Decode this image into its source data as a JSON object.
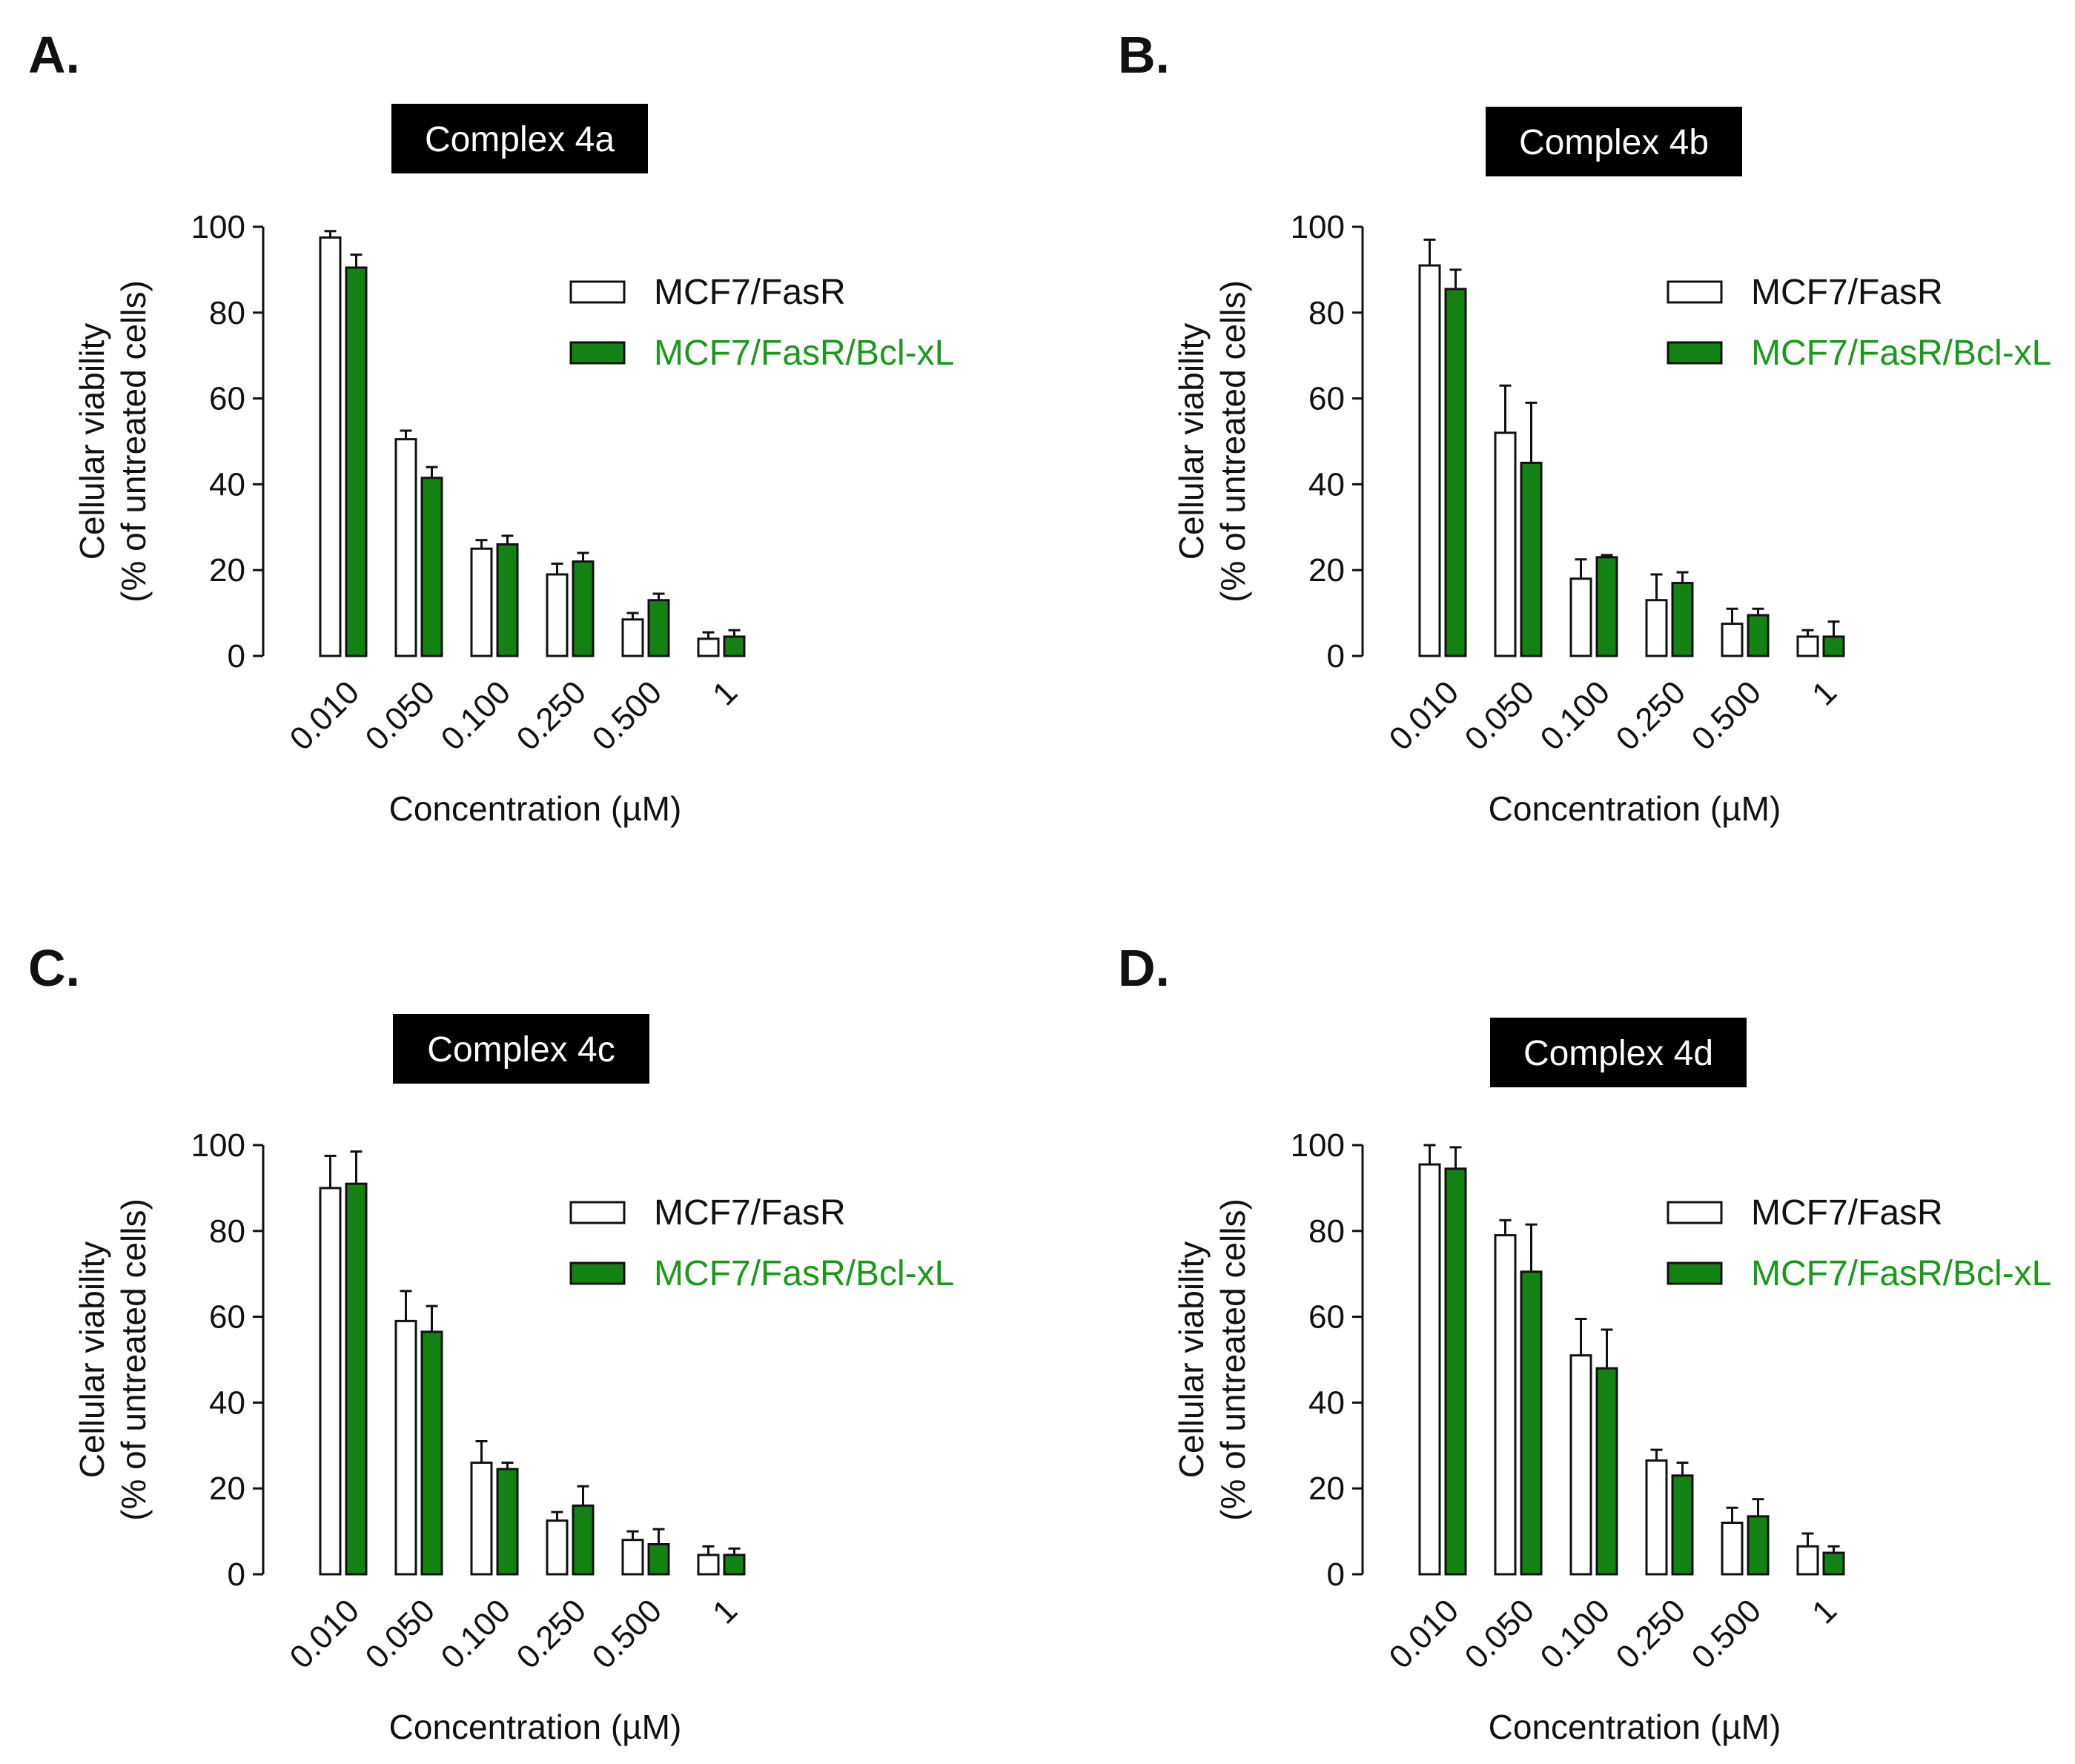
{
  "colors": {
    "series_white_fill": "#ffffff",
    "series_green_fill": "#128312",
    "series_green_text": "#1a9a1a",
    "outline": "#111111",
    "title_bg": "#000000",
    "title_text": "#ffffff"
  },
  "chart_data": [
    {
      "type": "bar",
      "panel": "A.",
      "title": "Complex 4a",
      "xlabel": "Concentration (µM)",
      "ylabel": [
        "Cellular viability",
        "(% of untreated cells)"
      ],
      "ylim": [
        0,
        100
      ],
      "yticks": [
        0,
        20,
        40,
        60,
        80,
        100
      ],
      "categories": [
        "0.010",
        "0.050",
        "0.100",
        "0.250",
        "0.500",
        "1"
      ],
      "series": [
        {
          "name": "MCF7/FasR",
          "values": [
            97.5,
            50.5,
            25,
            19,
            8.5,
            4
          ],
          "errors": [
            1.5,
            2,
            2,
            2.5,
            1.5,
            1.5
          ]
        },
        {
          "name": "MCF7/FasR/Bcl-xL",
          "values": [
            90.5,
            41.5,
            26,
            22,
            13,
            4.5
          ],
          "errors": [
            3,
            2.5,
            2,
            2,
            1.5,
            1.5
          ]
        }
      ]
    },
    {
      "type": "bar",
      "panel": "B.",
      "title": "Complex 4b",
      "xlabel": "Concentration (µM)",
      "ylabel": [
        "Cellular viability",
        "(% of untreated cells)"
      ],
      "ylim": [
        0,
        100
      ],
      "yticks": [
        0,
        20,
        40,
        60,
        80,
        100
      ],
      "categories": [
        "0.010",
        "0.050",
        "0.100",
        "0.250",
        "0.500",
        "1"
      ],
      "series": [
        {
          "name": "MCF7/FasR",
          "values": [
            91,
            52,
            18,
            13,
            7.5,
            4.5
          ],
          "errors": [
            6,
            11,
            4.5,
            6,
            3.5,
            1.5
          ]
        },
        {
          "name": "MCF7/FasR/Bcl-xL",
          "values": [
            85.5,
            45,
            23,
            17,
            9.5,
            4.5
          ],
          "errors": [
            4.5,
            14,
            0.5,
            2.5,
            1.5,
            3.5
          ]
        }
      ]
    },
    {
      "type": "bar",
      "panel": "C.",
      "title": "Complex 4c",
      "xlabel": "Concentration (µM)",
      "ylabel": [
        "Cellular viability",
        "(% of untreated cells)"
      ],
      "ylim": [
        0,
        100
      ],
      "yticks": [
        0,
        20,
        40,
        60,
        80,
        100
      ],
      "categories": [
        "0.010",
        "0.050",
        "0.100",
        "0.250",
        "0.500",
        "1"
      ],
      "series": [
        {
          "name": "MCF7/FasR",
          "values": [
            90,
            59,
            26,
            12.5,
            8,
            4.5
          ],
          "errors": [
            7.5,
            7,
            5,
            2,
            2,
            2
          ]
        },
        {
          "name": "MCF7/FasR/Bcl-xL",
          "values": [
            91,
            56.5,
            24.5,
            16,
            7,
            4.5
          ],
          "errors": [
            7.5,
            6,
            1.5,
            4.5,
            3.5,
            1.5
          ]
        }
      ]
    },
    {
      "type": "bar",
      "panel": "D.",
      "title": "Complex 4d",
      "xlabel": "Concentration (µM)",
      "ylabel": [
        "Cellular viability",
        "(% of untreated cells)"
      ],
      "ylim": [
        0,
        100
      ],
      "yticks": [
        0,
        20,
        40,
        60,
        80,
        100
      ],
      "categories": [
        "0.010",
        "0.050",
        "0.100",
        "0.250",
        "0.500",
        "1"
      ],
      "series": [
        {
          "name": "MCF7/FasR",
          "values": [
            95.5,
            79,
            51,
            26.5,
            12,
            6.5
          ],
          "errors": [
            4.5,
            3.5,
            8.5,
            2.5,
            3.5,
            3
          ]
        },
        {
          "name": "MCF7/FasR/Bcl-xL",
          "values": [
            94.5,
            70.5,
            48,
            23,
            13.5,
            5
          ],
          "errors": [
            5,
            11,
            9,
            3,
            4,
            1.5
          ]
        }
      ]
    }
  ]
}
